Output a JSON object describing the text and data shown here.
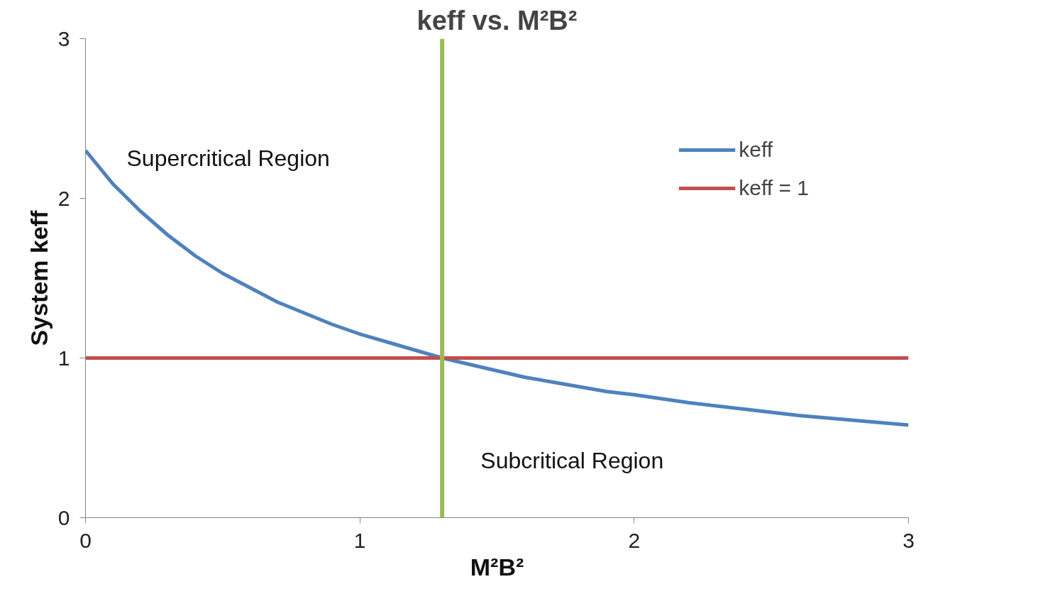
{
  "chart_data": {
    "type": "line",
    "title": "keff vs. M²B²",
    "xlabel": "M²B²",
    "ylabel": "System keff",
    "xlim": [
      0,
      3
    ],
    "ylim": [
      0,
      3
    ],
    "xticks": [
      0,
      1,
      2,
      3
    ],
    "yticks": [
      0,
      1,
      2,
      3
    ],
    "grid": false,
    "legend": "top right",
    "marker": "none",
    "line_style": "solid",
    "series": [
      {
        "name": "keff",
        "color": "#4f81bd",
        "x": [
          0,
          0.1,
          0.2,
          0.3,
          0.4,
          0.5,
          0.6,
          0.7,
          0.8,
          0.9,
          1.0,
          1.1,
          1.2,
          1.3,
          1.4,
          1.5,
          1.6,
          1.7,
          1.8,
          1.9,
          2.0,
          2.2,
          2.4,
          2.6,
          2.8,
          3.0
        ],
        "values": [
          2.3,
          2.09,
          1.92,
          1.77,
          1.64,
          1.53,
          1.44,
          1.35,
          1.28,
          1.21,
          1.15,
          1.1,
          1.05,
          1.0,
          0.96,
          0.92,
          0.88,
          0.85,
          0.82,
          0.79,
          0.77,
          0.72,
          0.68,
          0.64,
          0.61,
          0.58
        ]
      },
      {
        "name": "keff = 1",
        "color": "#c0504d",
        "x": [
          0,
          3
        ],
        "values": [
          1,
          1
        ]
      }
    ],
    "ref_lines": [
      {
        "axis": "x",
        "value": 1.3,
        "color": "#9bbb59"
      }
    ],
    "annotations": [
      "Supercritical Region",
      "Subcritical Region"
    ]
  }
}
